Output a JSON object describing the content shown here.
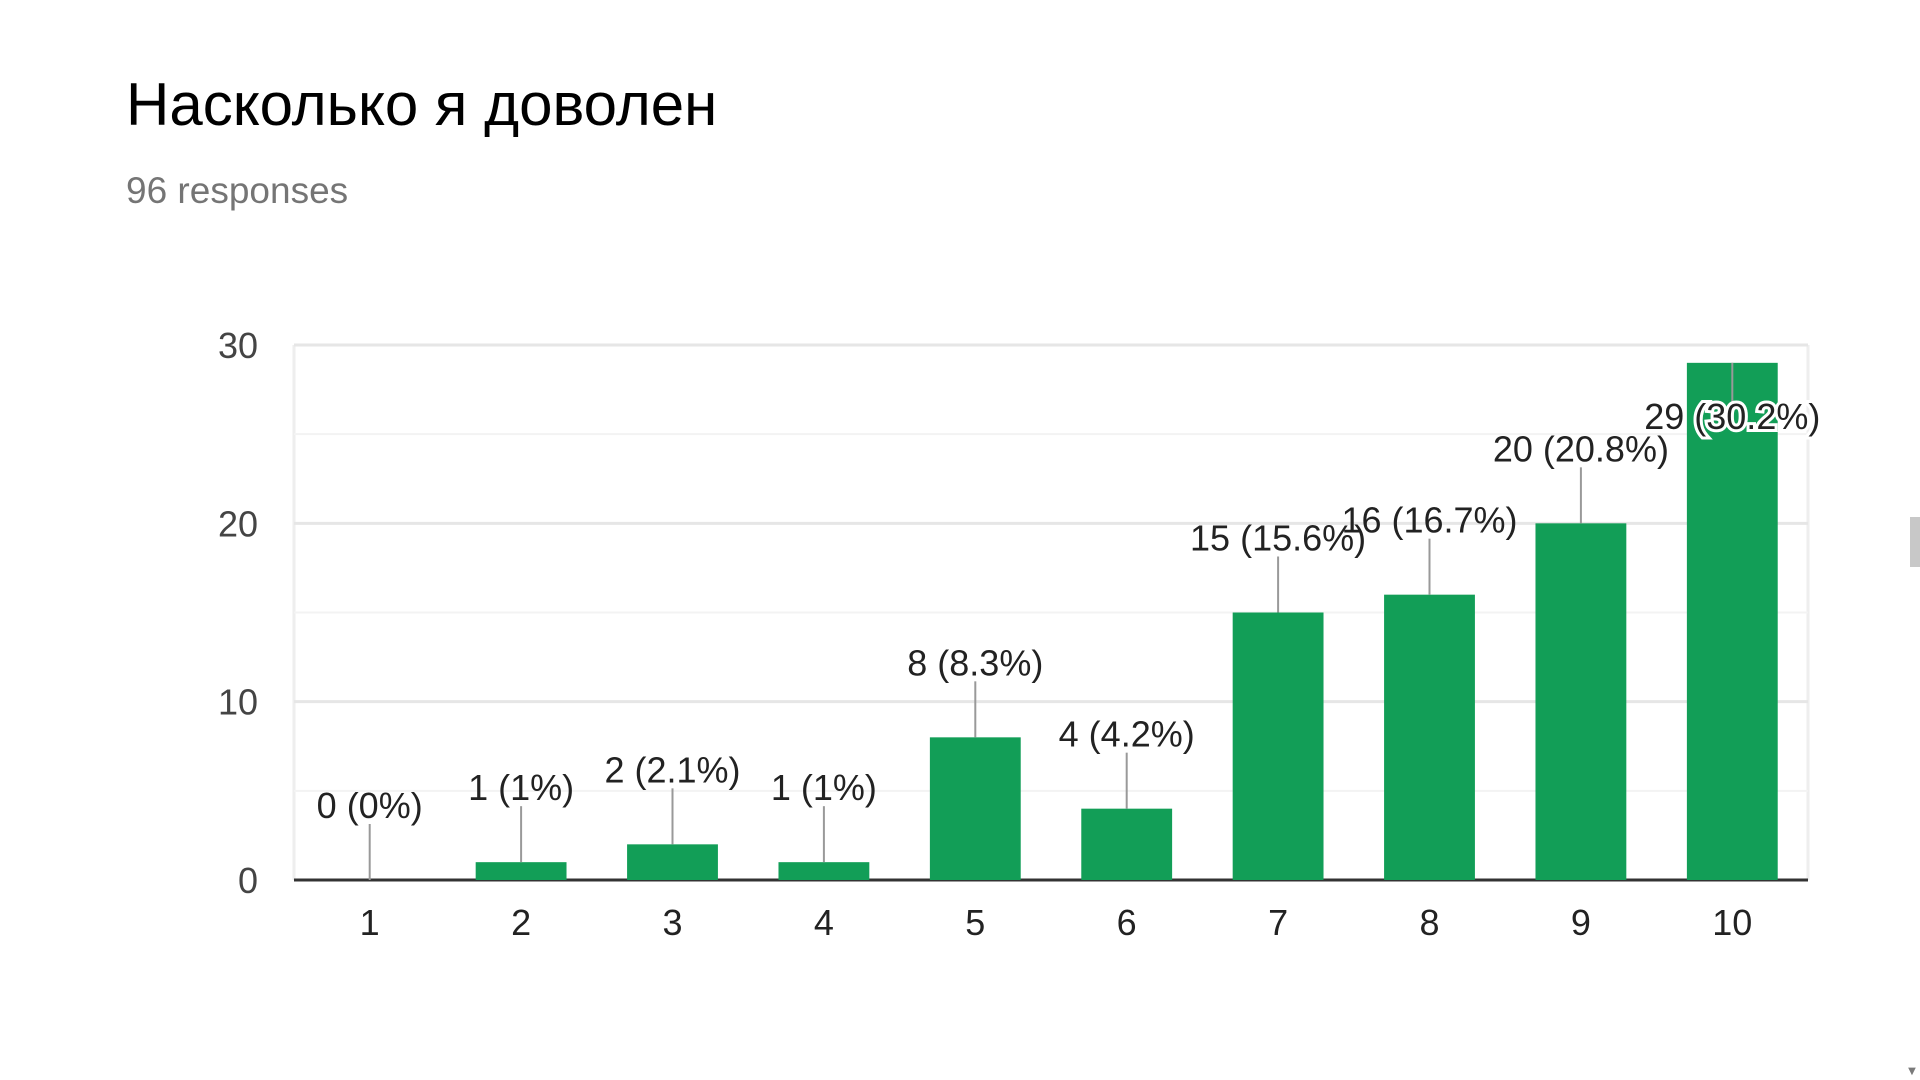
{
  "header": {
    "title": "Насколько я доволен",
    "responses": "96 responses"
  },
  "colors": {
    "bar": "#129e57",
    "grid": "#eeeeee",
    "axis": "#333333",
    "label_text": "#222222",
    "tick_text": "#444444",
    "subtitle": "#757575"
  },
  "scrollbar": {
    "up_icon": "triangle-up-icon",
    "down_icon": "triangle-down-icon"
  },
  "chart_data": {
    "type": "bar",
    "title": "Насколько я доволен",
    "categories": [
      "1",
      "2",
      "3",
      "4",
      "5",
      "6",
      "7",
      "8",
      "9",
      "10"
    ],
    "values": [
      0,
      1,
      2,
      1,
      8,
      4,
      15,
      16,
      20,
      29
    ],
    "data_labels": [
      "0 (0%)",
      "1 (1%)",
      "2 (2.1%)",
      "1 (1%)",
      "8 (8.3%)",
      "4 (4.2%)",
      "15 (15.6%)",
      "16 (16.7%)",
      "20 (20.8%)",
      "29 (30.2%)"
    ],
    "y_ticks": [
      "0",
      "10",
      "20",
      "30"
    ],
    "ylim": [
      0,
      30
    ],
    "grid": true,
    "legend": "none",
    "xlabel": "",
    "ylabel": ""
  }
}
